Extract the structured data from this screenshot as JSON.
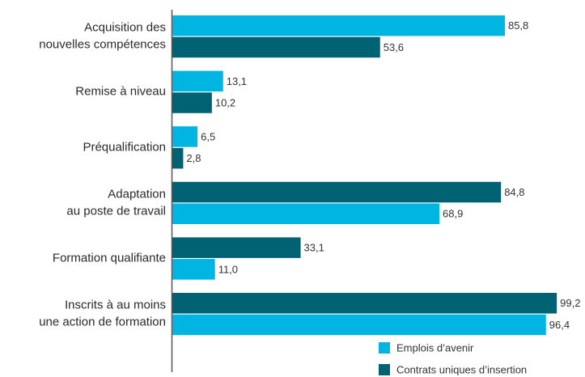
{
  "chart_data": {
    "type": "bar",
    "orientation": "horizontal",
    "categories": [
      [
        "Acquisition des",
        "nouvelles compétences"
      ],
      [
        "Remise à niveau"
      ],
      [
        "Préqualification"
      ],
      [
        "Adaptation",
        "au poste de travail"
      ],
      [
        "Formation qualifiante"
      ],
      [
        "Inscrits à au moins",
        "une action de formation"
      ]
    ],
    "series": [
      {
        "name": "Emplois d’avenir",
        "color": "#00b5e2",
        "values": [
          85.8,
          13.1,
          6.5,
          68.9,
          11.0,
          96.4
        ],
        "value_labels": [
          "85,8",
          "13,1",
          "6,5",
          "68,9",
          "11,0",
          "96,4"
        ]
      },
      {
        "name": "Contrats uniques d’insertion",
        "color": "#006272",
        "values": [
          53.6,
          10.2,
          2.8,
          84.8,
          33.1,
          99.2
        ],
        "value_labels": [
          "53,6",
          "10,2",
          "2,8",
          "84,8",
          "33,1",
          "99,2"
        ]
      }
    ],
    "bar_order": [
      [
        0,
        1
      ],
      [
        0,
        1
      ],
      [
        0,
        1
      ],
      [
        1,
        0
      ],
      [
        1,
        0
      ],
      [
        1,
        0
      ]
    ],
    "xlim": [
      0,
      100
    ],
    "legend": "bottom-right"
  }
}
